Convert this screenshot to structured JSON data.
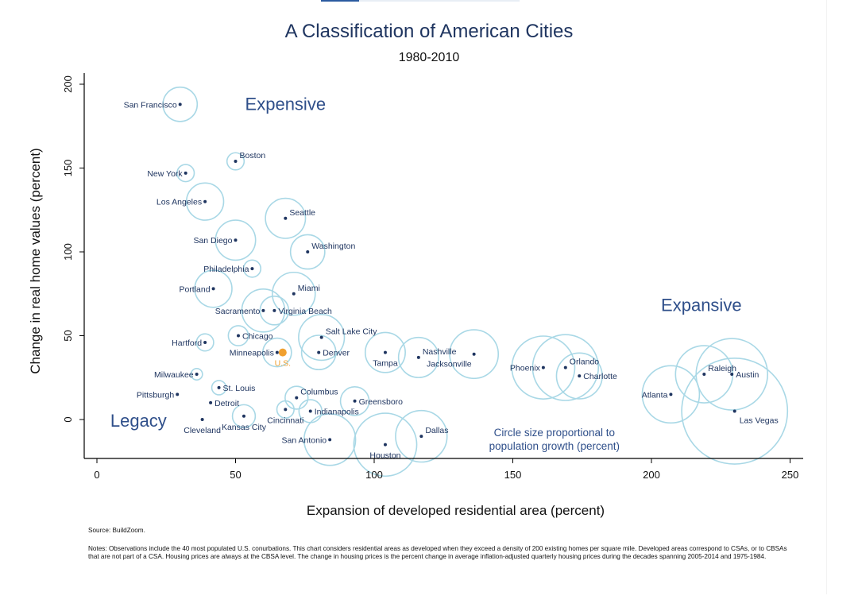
{
  "chart_data": {
    "type": "scatter",
    "title": "A Classification of American Cities",
    "subtitle": "1980-2010",
    "xlabel": "Expansion of developed residential area (percent)",
    "ylabel": "Change in real home values (percent)",
    "xlim": [
      0,
      255
    ],
    "ylim": [
      -22,
      210
    ],
    "xticks": [
      0,
      50,
      100,
      150,
      200,
      250
    ],
    "yticks": [
      0,
      50,
      100,
      150,
      200
    ],
    "grid": false,
    "size_note": "Circle size proportional to population growth (percent)",
    "region_labels": [
      {
        "text": "Expensive",
        "x": 68,
        "y": 188
      },
      {
        "text": "Expansive",
        "x": 218,
        "y": 68
      },
      {
        "text": "Legacy",
        "x": 15,
        "y": -1
      }
    ],
    "points": [
      {
        "name": "San Francisco",
        "x": 30,
        "y": 188,
        "growth": 12,
        "label_side": "left"
      },
      {
        "name": "Boston",
        "x": 50,
        "y": 154,
        "growth": 6,
        "label_side": "right-up"
      },
      {
        "name": "New York",
        "x": 32,
        "y": 147,
        "growth": 6,
        "label_side": "left"
      },
      {
        "name": "Los Angeles",
        "x": 39,
        "y": 130,
        "growth": 13,
        "label_side": "left"
      },
      {
        "name": "Seattle",
        "x": 68,
        "y": 120,
        "growth": 14,
        "label_side": "right-up"
      },
      {
        "name": "San Diego",
        "x": 50,
        "y": 107,
        "growth": 14,
        "label_side": "left"
      },
      {
        "name": "Washington",
        "x": 76,
        "y": 100,
        "growth": 12,
        "label_side": "right-up"
      },
      {
        "name": "Philadelphia",
        "x": 56,
        "y": 90,
        "growth": 6,
        "label_side": "left"
      },
      {
        "name": "Portland",
        "x": 42,
        "y": 78,
        "growth": 13,
        "label_side": "left"
      },
      {
        "name": "Miami",
        "x": 71,
        "y": 75,
        "growth": 15,
        "label_side": "right-up"
      },
      {
        "name": "Sacramento",
        "x": 60,
        "y": 65,
        "growth": 15,
        "label_side": "left"
      },
      {
        "name": "Virginia Beach",
        "x": 64,
        "y": 65,
        "growth": 10,
        "label_side": "right"
      },
      {
        "name": "Salt Lake City",
        "x": 81,
        "y": 49,
        "growth": 16,
        "label_side": "right-up"
      },
      {
        "name": "Hartford",
        "x": 39,
        "y": 46,
        "growth": 6,
        "label_side": "left"
      },
      {
        "name": "Chicago",
        "x": 51,
        "y": 50,
        "growth": 7,
        "label_side": "right"
      },
      {
        "name": "Minneapolis",
        "x": 65,
        "y": 40,
        "growth": 10,
        "label_side": "left"
      },
      {
        "name": "U.S.",
        "x": 67,
        "y": 40,
        "growth": 0,
        "highlight": true,
        "label_side": "below"
      },
      {
        "name": "Denver",
        "x": 80,
        "y": 40,
        "growth": 12,
        "label_side": "right"
      },
      {
        "name": "Tampa",
        "x": 104,
        "y": 40,
        "growth": 14,
        "label_side": "below"
      },
      {
        "name": "Nashville",
        "x": 116,
        "y": 37,
        "growth": 14,
        "label_side": "right-up"
      },
      {
        "name": "Jacksonville",
        "x": 136,
        "y": 39,
        "growth": 17,
        "label_side": "left-down"
      },
      {
        "name": "Phoenix",
        "x": 161,
        "y": 31,
        "growth": 22,
        "label_side": "left"
      },
      {
        "name": "Orlando",
        "x": 169,
        "y": 31,
        "growth": 23,
        "label_side": "right-up"
      },
      {
        "name": "Charlotte",
        "x": 174,
        "y": 26,
        "growth": 16,
        "label_side": "right"
      },
      {
        "name": "Milwaukee",
        "x": 36,
        "y": 27,
        "growth": 4,
        "label_side": "left"
      },
      {
        "name": "St. Louis",
        "x": 44,
        "y": 19,
        "growth": 5,
        "label_side": "right"
      },
      {
        "name": "Pittsburgh",
        "x": 29,
        "y": 15,
        "growth": 0,
        "label_side": "left"
      },
      {
        "name": "Detroit",
        "x": 41,
        "y": 10,
        "growth": 0,
        "label_side": "right"
      },
      {
        "name": "Columbus",
        "x": 72,
        "y": 13,
        "growth": 8,
        "label_side": "right-up"
      },
      {
        "name": "Greensboro",
        "x": 93,
        "y": 11,
        "growth": 10,
        "label_side": "right"
      },
      {
        "name": "Cincinnati",
        "x": 68,
        "y": 6,
        "growth": 6,
        "label_side": "below"
      },
      {
        "name": "Indianapolis",
        "x": 77,
        "y": 5,
        "growth": 8,
        "label_side": "right"
      },
      {
        "name": "Kansas City",
        "x": 53,
        "y": 2,
        "growth": 8,
        "label_side": "below"
      },
      {
        "name": "Cleveland",
        "x": 38,
        "y": 0,
        "growth": 0,
        "label_side": "below"
      },
      {
        "name": "Atlanta",
        "x": 207,
        "y": 15,
        "growth": 20,
        "label_side": "left"
      },
      {
        "name": "Raleigh",
        "x": 219,
        "y": 27,
        "growth": 20,
        "label_side": "right-up"
      },
      {
        "name": "Austin",
        "x": 229,
        "y": 27,
        "growth": 25,
        "label_side": "right"
      },
      {
        "name": "Las Vegas",
        "x": 230,
        "y": 5,
        "growth": 37,
        "label_side": "right-down"
      },
      {
        "name": "San Antonio",
        "x": 84,
        "y": -12,
        "growth": 18,
        "label_side": "left"
      },
      {
        "name": "Houston",
        "x": 104,
        "y": -15,
        "growth": 22,
        "label_side": "below"
      },
      {
        "name": "Dallas",
        "x": 117,
        "y": -10,
        "growth": 18,
        "label_side": "right-up"
      }
    ]
  },
  "footer": {
    "source": "Source: BuildZoom.",
    "notes": "Notes: Observations include the 40 most populated U.S. conurbations. This chart considers residential areas as developed when they exceed a density of 200 existing homes per square mile. Developed areas correspond to CSAs, or to CBSAs that are not part of a CSA. Housing prices are always at the CBSA level. The change in housing prices is the percent change in average inflation-adjusted quarterly housing prices during the decades spanning 2005-2014 and 1975-1984."
  },
  "colors": {
    "circle": "#a9d8e6",
    "dot": "#1f3560",
    "label": "#1f3560",
    "region": "#2f4f8a",
    "us": "#f0a030",
    "axis": "#000000"
  }
}
